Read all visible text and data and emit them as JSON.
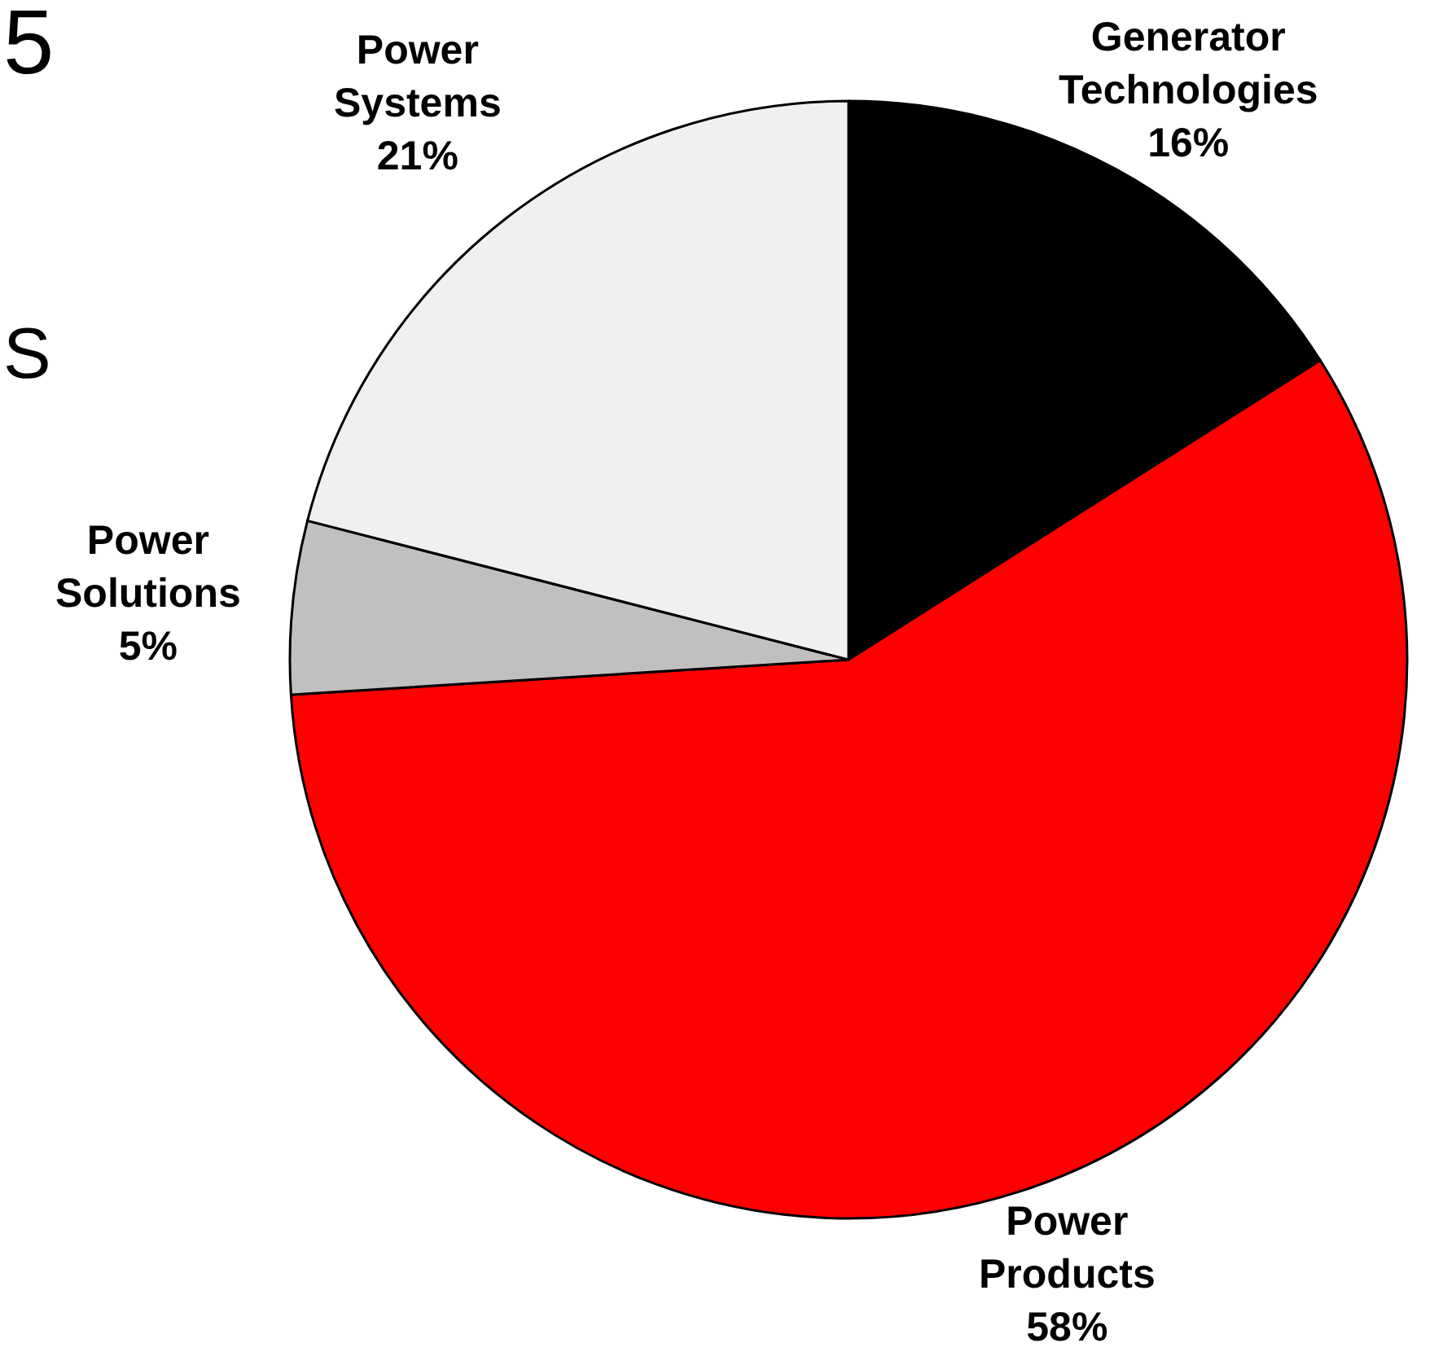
{
  "chart_data": {
    "type": "pie",
    "categories": [
      "Generator Technologies",
      "Power Products",
      "Power Solutions",
      "Power Systems"
    ],
    "values": [
      16,
      58,
      5,
      21
    ],
    "colors": [
      "#000000",
      "#ff0000",
      "#c0c0c0",
      "#f0f0f0"
    ],
    "value_labels": [
      "16%",
      "58%",
      "5%",
      "21%"
    ],
    "annotations": [
      "5",
      "S"
    ]
  }
}
